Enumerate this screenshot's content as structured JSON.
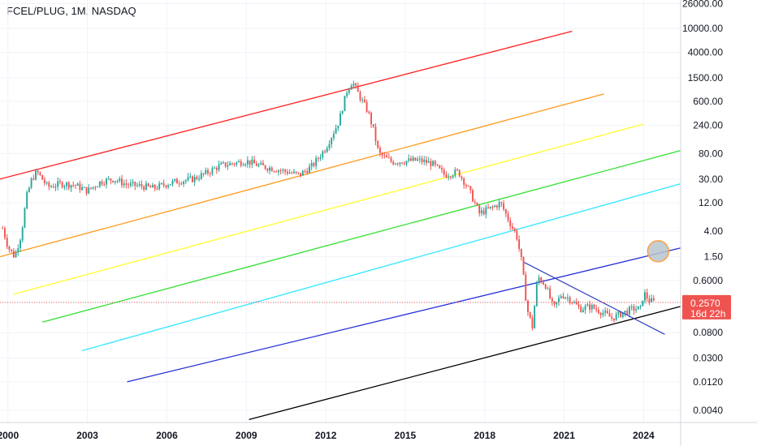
{
  "header": {
    "title": "FCEL/PLUG, 1M, NASDAQ"
  },
  "price_label": {
    "value": "0.2570",
    "countdown": "16d 22h"
  },
  "colors": {
    "up": "#26a69a",
    "down": "#ef5350",
    "price_tag": "#ef5350",
    "channel_lines": [
      "#ff2020",
      "#ff9a1a",
      "#ffff30",
      "#30e030",
      "#30e8ff",
      "#2530d8",
      "#000000"
    ],
    "trendline": "#3040c0",
    "marker_fill": "#b8c4cc",
    "marker_stroke": "#ffa040"
  },
  "chart_data": {
    "type": "candlestick",
    "scale": "log",
    "grid": true,
    "y_ticks": [
      "26000.00",
      "10000.00",
      "4000.00",
      "1500.00",
      "600.00",
      "240.00",
      "80.00",
      "30.00",
      "12.00",
      "4.00",
      "1.50",
      "0.6000",
      "0.2570",
      "0.0800",
      "0.0300",
      "0.0120",
      "0.0040"
    ],
    "y_tick_values": [
      26000,
      10000,
      4000,
      1500,
      600,
      240,
      80,
      30,
      12,
      4,
      1.5,
      0.6,
      0.257,
      0.08,
      0.03,
      0.012,
      0.004
    ],
    "x_ticks": [
      "2000",
      "2003",
      "2006",
      "2009",
      "2012",
      "2015",
      "2018",
      "2021",
      "2024"
    ],
    "x_tick_values": [
      2000,
      2003,
      2006,
      2009,
      2012,
      2015,
      2018,
      2021,
      2024
    ],
    "xlim": [
      1999.7,
      2025.4
    ],
    "ylim": [
      0.0025,
      30000
    ],
    "price_path": [
      [
        1999.8,
        4.5
      ],
      [
        2000.0,
        2.2
      ],
      [
        2000.25,
        1.5
      ],
      [
        2000.5,
        3.5
      ],
      [
        2000.7,
        15
      ],
      [
        2000.9,
        30
      ],
      [
        2001.1,
        40
      ],
      [
        2001.5,
        22
      ],
      [
        2002.0,
        25
      ],
      [
        2002.5,
        24
      ],
      [
        2003.0,
        19
      ],
      [
        2003.5,
        27
      ],
      [
        2004.0,
        30
      ],
      [
        2004.5,
        24
      ],
      [
        2005.0,
        23
      ],
      [
        2005.5,
        21
      ],
      [
        2006.0,
        25
      ],
      [
        2006.5,
        28
      ],
      [
        2007.0,
        30
      ],
      [
        2007.5,
        38
      ],
      [
        2008.0,
        50
      ],
      [
        2008.5,
        55
      ],
      [
        2009.0,
        60
      ],
      [
        2009.5,
        50
      ],
      [
        2010.0,
        45
      ],
      [
        2010.5,
        40
      ],
      [
        2011.0,
        35
      ],
      [
        2011.5,
        50
      ],
      [
        2012.0,
        100
      ],
      [
        2012.5,
        280
      ],
      [
        2012.8,
        900
      ],
      [
        2013.0,
        1300
      ],
      [
        2013.3,
        700
      ],
      [
        2013.6,
        400
      ],
      [
        2013.8,
        200
      ],
      [
        2014.0,
        80
      ],
      [
        2014.5,
        58
      ],
      [
        2015.0,
        60
      ],
      [
        2015.5,
        62
      ],
      [
        2016.0,
        55
      ],
      [
        2016.5,
        35
      ],
      [
        2017.0,
        40
      ],
      [
        2017.4,
        20
      ],
      [
        2017.8,
        8
      ],
      [
        2018.3,
        10
      ],
      [
        2018.6,
        12
      ],
      [
        2019.0,
        5
      ],
      [
        2019.2,
        3.5
      ],
      [
        2019.4,
        1.2
      ],
      [
        2019.6,
        0.2
      ],
      [
        2019.8,
        0.1
      ],
      [
        2020.0,
        0.7
      ],
      [
        2020.3,
        0.5
      ],
      [
        2020.6,
        0.2
      ],
      [
        2020.9,
        0.35
      ],
      [
        2021.2,
        0.3
      ],
      [
        2021.6,
        0.2
      ],
      [
        2022.0,
        0.22
      ],
      [
        2022.5,
        0.17
      ],
      [
        2022.8,
        0.14
      ],
      [
        2023.2,
        0.17
      ],
      [
        2023.6,
        0.2
      ],
      [
        2023.9,
        0.2
      ],
      [
        2024.0,
        0.38
      ],
      [
        2024.2,
        0.28
      ],
      [
        2024.4,
        0.257
      ]
    ],
    "channel_lines": [
      {
        "points": [
          [
            1999.7,
            30
          ],
          [
            2021.3,
            9000
          ]
        ]
      },
      {
        "points": [
          [
            1999.7,
            1.5
          ],
          [
            2022.5,
            800
          ]
        ]
      },
      {
        "points": [
          [
            2000.2,
            0.35
          ],
          [
            2024.0,
            250
          ]
        ]
      },
      {
        "points": [
          [
            2001.3,
            0.12
          ],
          [
            2025.4,
            90
          ]
        ]
      },
      {
        "points": [
          [
            2002.8,
            0.04
          ],
          [
            2025.4,
            25
          ]
        ]
      },
      {
        "points": [
          [
            2004.5,
            0.012
          ],
          [
            2025.4,
            2.1
          ]
        ]
      },
      {
        "points": [
          [
            2009.1,
            0.0028
          ],
          [
            2025.4,
            0.22
          ]
        ]
      }
    ],
    "trendline": {
      "points": [
        [
          2019.5,
          1.2
        ],
        [
          2024.8,
          0.075
        ]
      ]
    },
    "marker": {
      "x": 2024.55,
      "y": 1.85
    }
  }
}
